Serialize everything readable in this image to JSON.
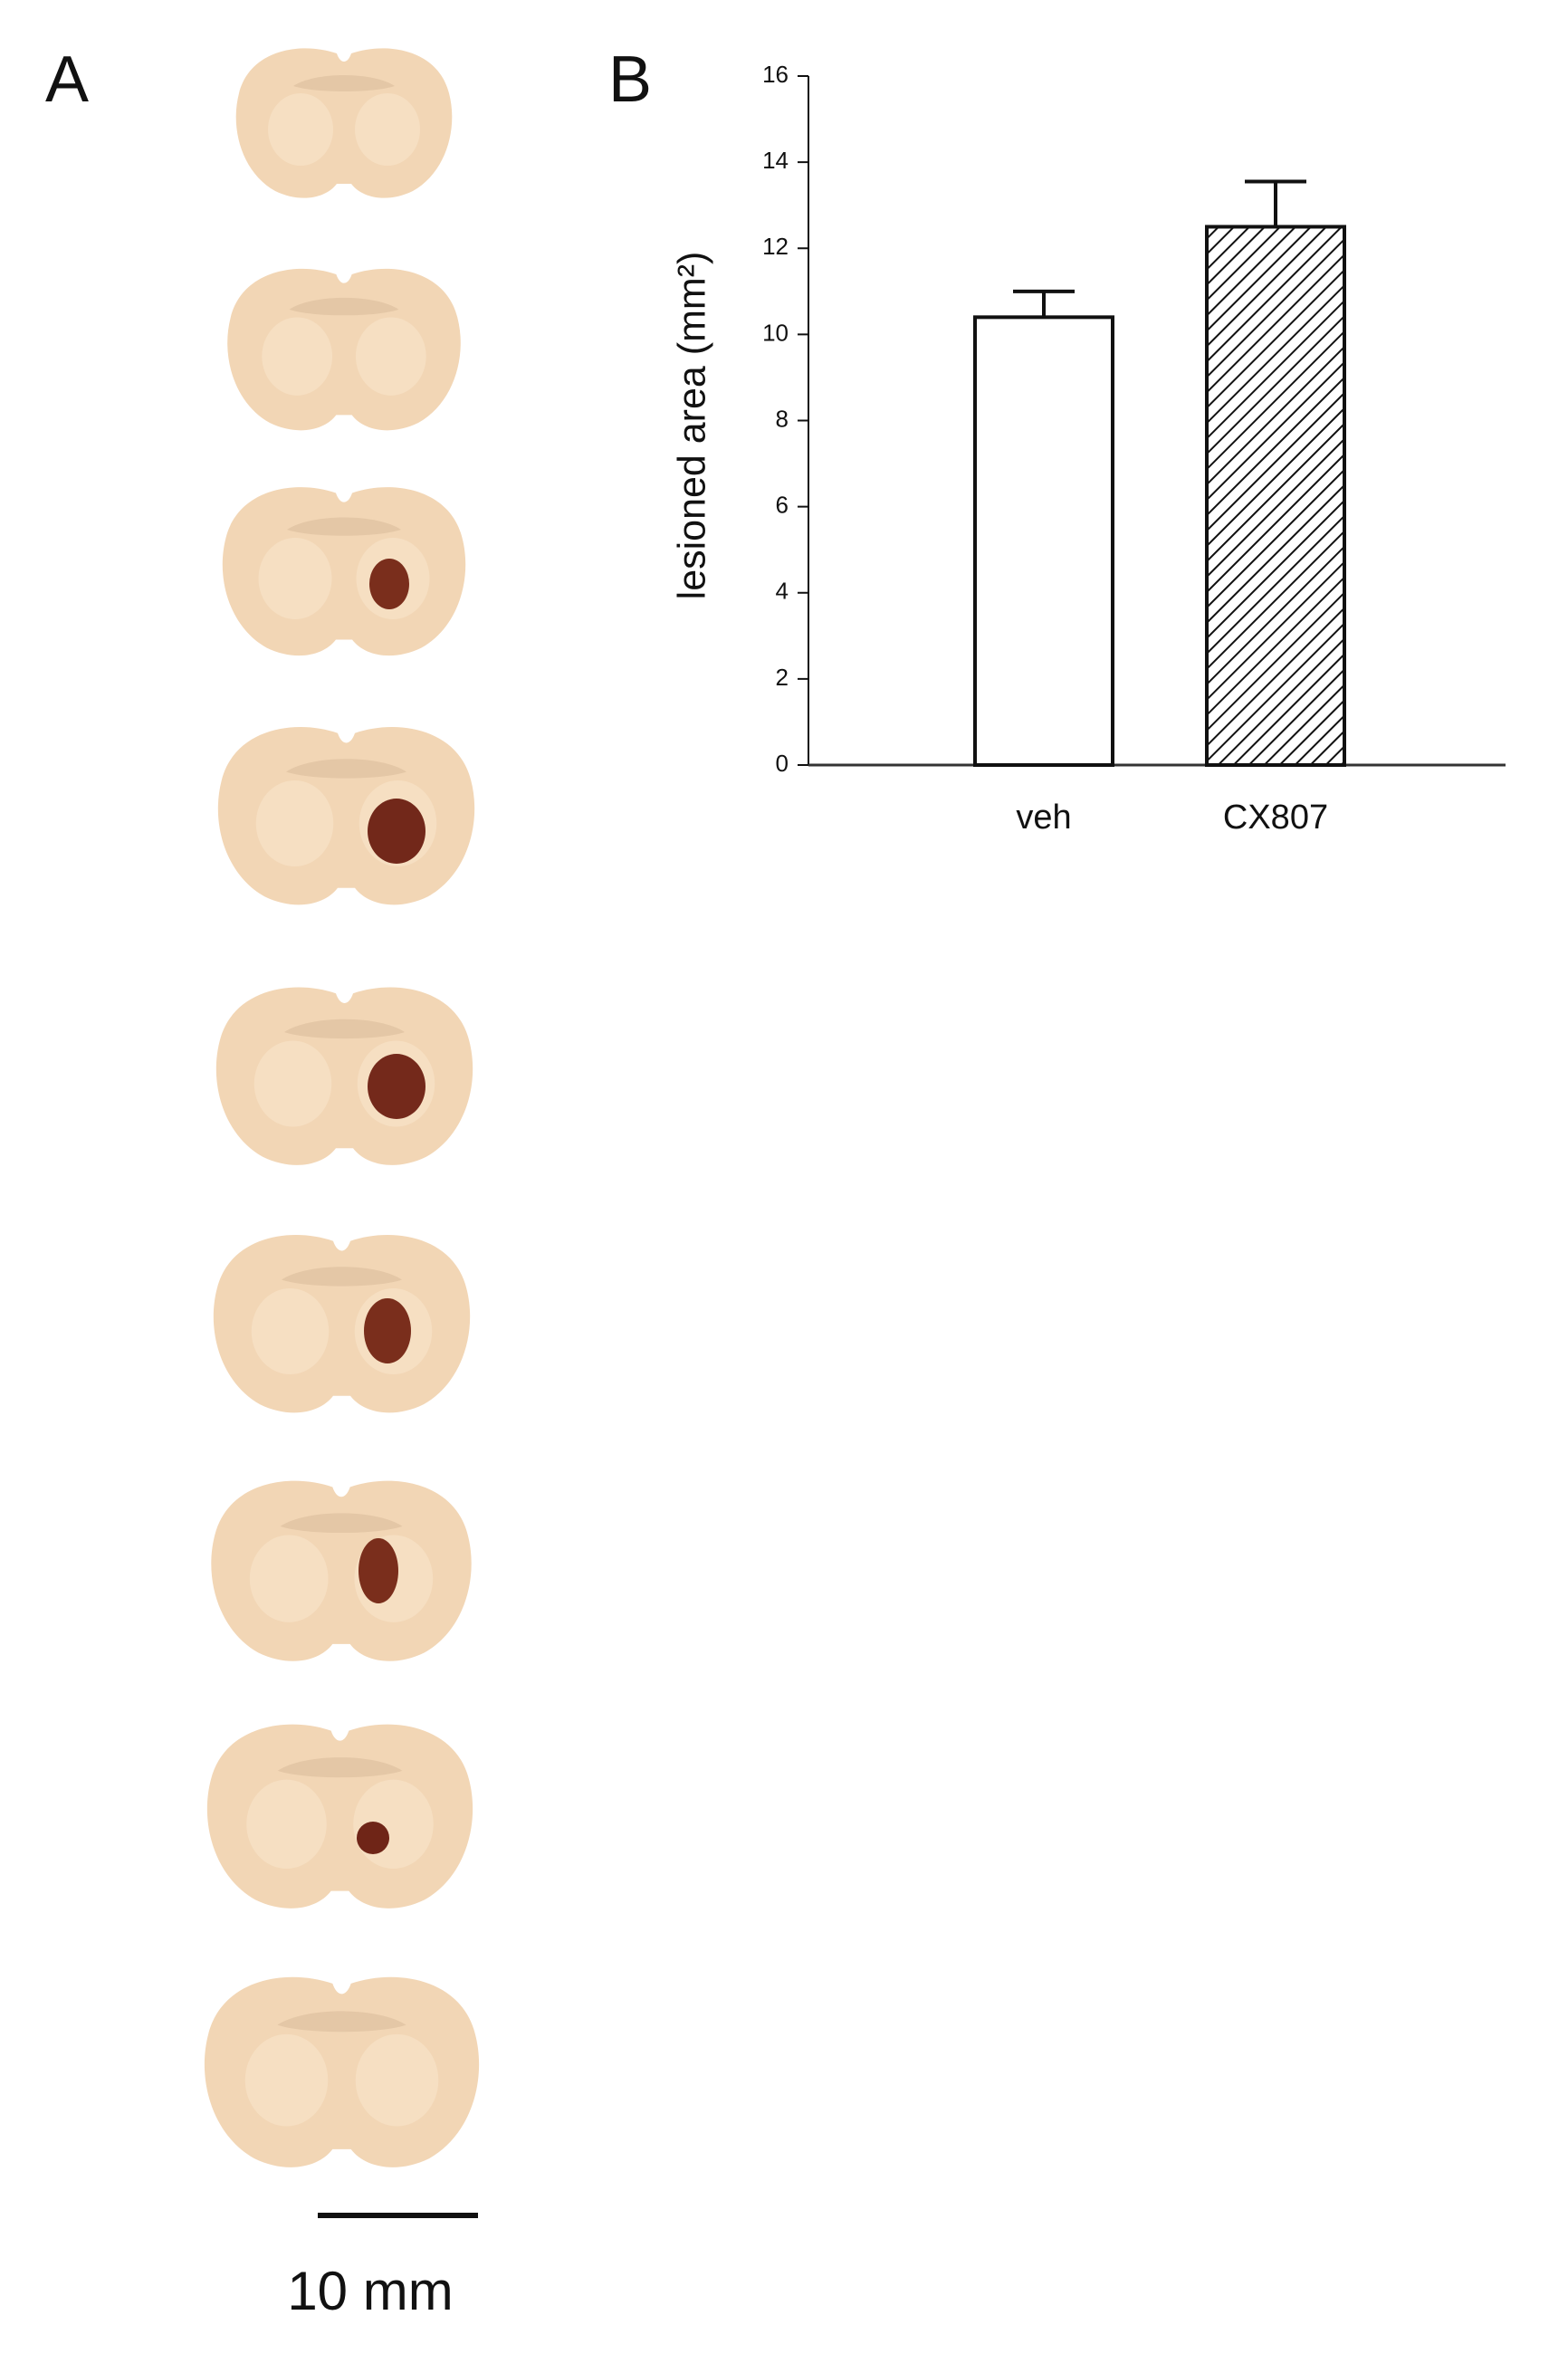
{
  "panels": {
    "a": "A",
    "b": "B"
  },
  "scale_bar_label": "10 mm",
  "chart_data": {
    "type": "bar",
    "y_label": "lesioned area (mm²)",
    "categories": [
      "veh",
      "CX807"
    ],
    "values": [
      10.4,
      12.5
    ],
    "errors": [
      0.6,
      1.05
    ],
    "bar_styles": [
      "solid",
      "hatch"
    ],
    "ylim": [
      0,
      16
    ],
    "yticks": [
      0,
      2,
      4,
      6,
      8,
      10,
      12,
      14,
      16
    ]
  }
}
